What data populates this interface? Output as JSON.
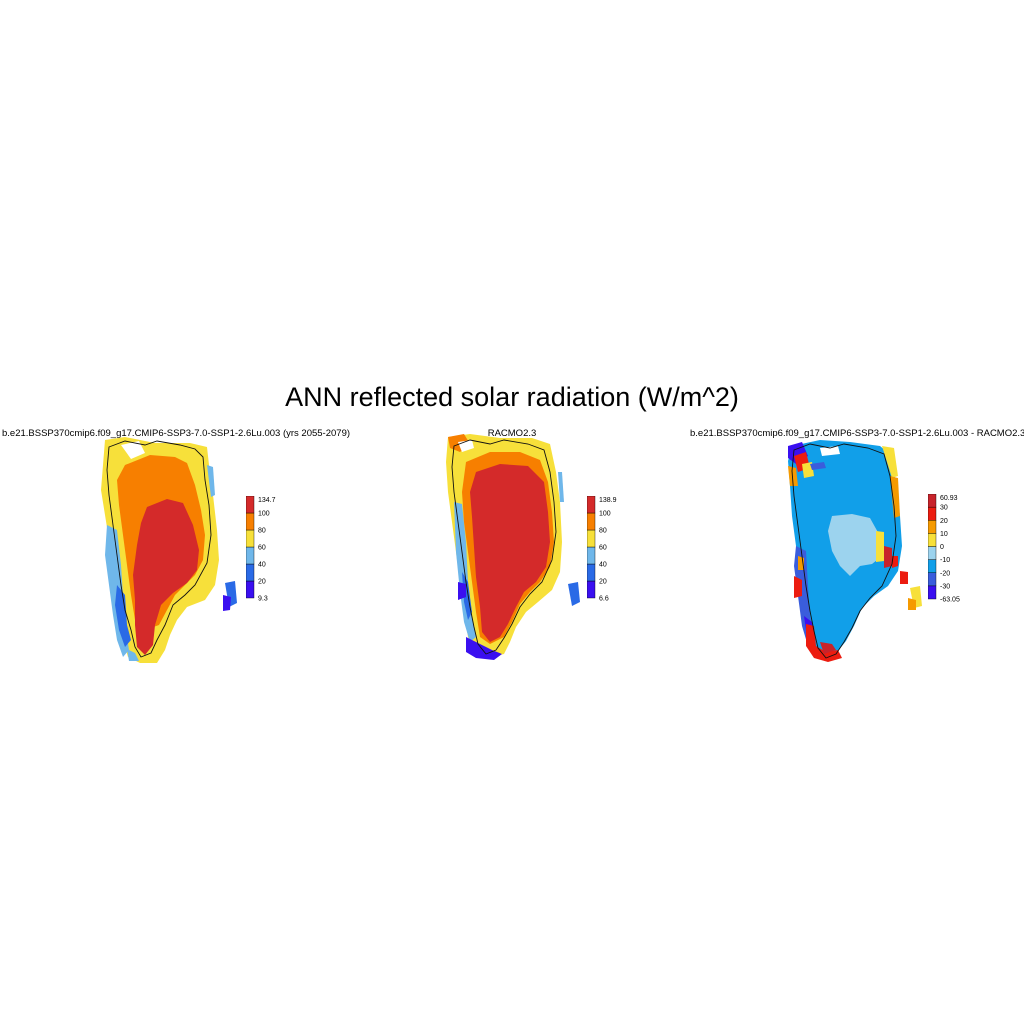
{
  "title": "ANN reflected solar radiation (W/m^2)",
  "panels": [
    {
      "title": "b.e21.BSSP370cmip6.f09_g17.CMIP6-SSP3-7.0-SSP1-2.6Lu.003 (yrs 2055-2079)",
      "colorbar": {
        "colors": [
          "#3a0ff0",
          "#2a6ae6",
          "#6fb7ea",
          "#f7e03a",
          "#f77f00",
          "#d42a2a"
        ],
        "labels": [
          "9.3",
          "20",
          "40",
          "60",
          "80",
          "100",
          "134.7"
        ]
      }
    },
    {
      "title": "RACMO2.3",
      "colorbar": {
        "colors": [
          "#3a0ff0",
          "#2a6ae6",
          "#6fb7ea",
          "#f7e03a",
          "#f77f00",
          "#d42a2a"
        ],
        "labels": [
          "6.6",
          "20",
          "40",
          "60",
          "80",
          "100",
          "138.9"
        ]
      }
    },
    {
      "title": "b.e21.BSSP370cmip6.f09_g17.CMIP6-SSP3-7.0-SSP1-2.6Lu.003 - RACMO2.3",
      "colorbar": {
        "colors": [
          "#3a0ff0",
          "#3a5ddc",
          "#119fe9",
          "#9cd3ee",
          "#f7e03a",
          "#f59a00",
          "#ec1c10",
          "#c8232b"
        ],
        "labels": [
          "-63.05",
          "-30",
          "-20",
          "-10",
          "0",
          "10",
          "20",
          "30",
          "60.93"
        ]
      }
    }
  ]
}
